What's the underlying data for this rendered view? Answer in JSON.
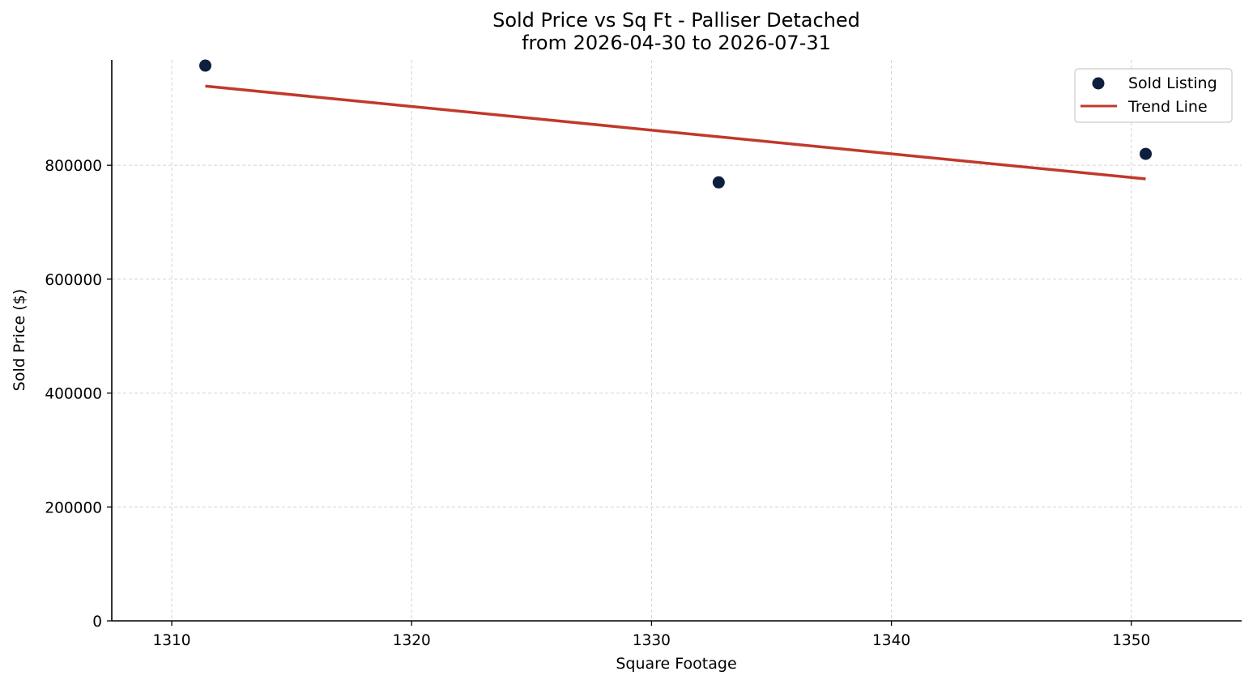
{
  "chart_data": {
    "type": "scatter",
    "title": "Sold Price vs Sq Ft - Palliser Detached",
    "subtitle": "from 2026-04-30 to 2026-07-31",
    "xlabel": "Square Footage",
    "ylabel": "Sold Price ($)",
    "xlim": [
      1307.5,
      1354.6
    ],
    "ylim": [
      0,
      985000
    ],
    "x_ticks": [
      1310,
      1320,
      1330,
      1340,
      1350
    ],
    "y_ticks": [
      0,
      200000,
      400000,
      600000,
      800000
    ],
    "x_tick_labels": [
      "1310",
      "1320",
      "1330",
      "1340",
      "1350"
    ],
    "y_tick_labels": [
      "0",
      "200000",
      "400000",
      "600000",
      "800000"
    ],
    "grid": true,
    "legend_position": "top-right",
    "series": [
      {
        "name": "Sold Listing",
        "kind": "scatter",
        "color": "#0d1f3c",
        "points": [
          {
            "x": 1311.4,
            "y": 975000
          },
          {
            "x": 1332.8,
            "y": 770000
          },
          {
            "x": 1350.6,
            "y": 820000
          }
        ]
      },
      {
        "name": "Trend Line",
        "kind": "line",
        "color": "#c0392b",
        "points": [
          {
            "x": 1311.4,
            "y": 939000
          },
          {
            "x": 1350.6,
            "y": 776000
          }
        ]
      }
    ]
  }
}
